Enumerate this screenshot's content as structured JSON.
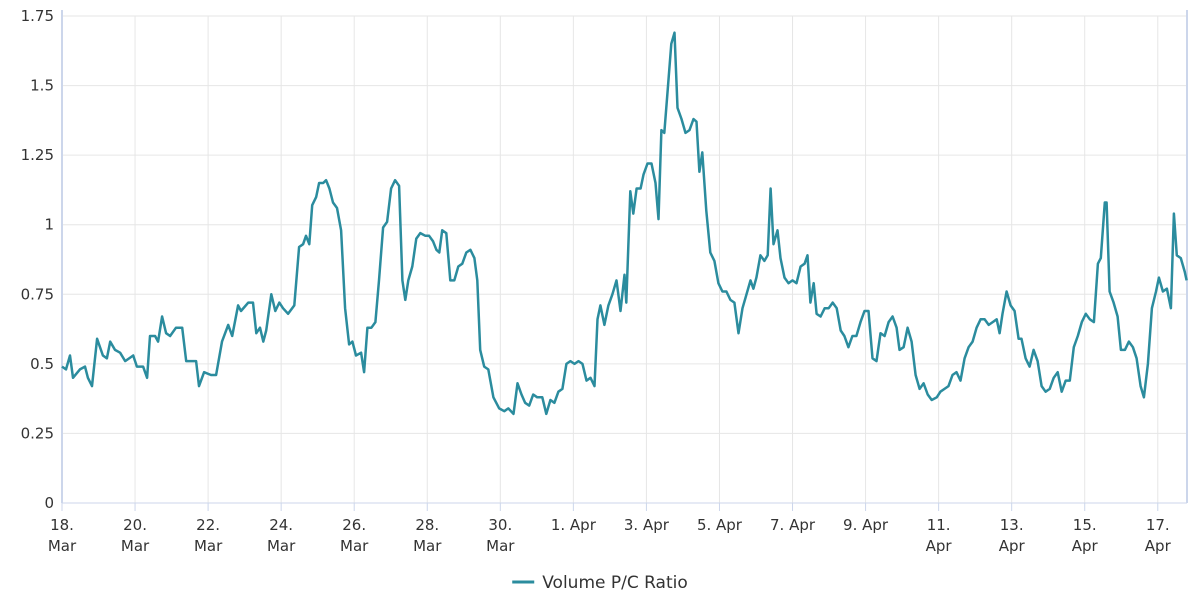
{
  "chart_data": {
    "type": "line",
    "x": [
      0,
      0.11,
      0.22,
      0.3,
      0.49,
      0.63,
      0.71,
      0.82,
      0.96,
      1.12,
      1.23,
      1.32,
      1.45,
      1.59,
      1.73,
      1.95,
      2.05,
      2.22,
      2.33,
      2.41,
      2.55,
      2.63,
      2.74,
      2.85,
      2.96,
      3.12,
      3.29,
      3.4,
      3.56,
      3.67,
      3.75,
      3.89,
      4.08,
      4.22,
      4.38,
      4.55,
      4.66,
      4.82,
      4.9,
      5.1,
      5.23,
      5.32,
      5.42,
      5.51,
      5.59,
      5.73,
      5.84,
      5.95,
      6.05,
      6.19,
      6.36,
      6.49,
      6.6,
      6.68,
      6.77,
      6.85,
      6.96,
      7.04,
      7.15,
      7.23,
      7.32,
      7.42,
      7.53,
      7.64,
      7.75,
      7.86,
      7.95,
      8.05,
      8.19,
      8.27,
      8.36,
      8.47,
      8.58,
      8.68,
      8.79,
      8.9,
      9.01,
      9.12,
      9.23,
      9.32,
      9.4,
      9.48,
      9.59,
      9.7,
      9.81,
      9.95,
      10.05,
      10.16,
      10.25,
      10.33,
      10.41,
      10.52,
      10.63,
      10.74,
      10.85,
      10.96,
      11.07,
      11.18,
      11.29,
      11.37,
      11.45,
      11.56,
      11.67,
      11.81,
      11.97,
      12.11,
      12.22,
      12.36,
      12.47,
      12.58,
      12.68,
      12.79,
      12.9,
      13.01,
      13.15,
      13.26,
      13.37,
      13.48,
      13.59,
      13.7,
      13.81,
      13.92,
      14.03,
      14.14,
      14.25,
      14.36,
      14.47,
      14.58,
      14.66,
      14.74,
      14.85,
      14.96,
      15.07,
      15.18,
      15.29,
      15.4,
      15.45,
      15.56,
      15.64,
      15.73,
      15.84,
      15.92,
      16.03,
      16.14,
      16.25,
      16.33,
      16.41,
      16.49,
      16.58,
      16.68,
      16.77,
      16.85,
      16.96,
      17.07,
      17.18,
      17.29,
      17.37,
      17.45,
      17.53,
      17.64,
      17.75,
      17.86,
      17.97,
      18.08,
      18.19,
      18.3,
      18.41,
      18.52,
      18.63,
      18.74,
      18.85,
      18.93,
      19.01,
      19.12,
      19.23,
      19.32,
      19.4,
      19.48,
      19.59,
      19.67,
      19.78,
      19.89,
      20.0,
      20.11,
      20.22,
      20.33,
      20.41,
      20.49,
      20.58,
      20.66,
      20.77,
      20.88,
      20.99,
      21.1,
      21.21,
      21.32,
      21.42,
      21.53,
      21.64,
      21.75,
      21.86,
      21.97,
      22.08,
      22.19,
      22.3,
      22.41,
      22.52,
      22.63,
      22.74,
      22.85,
      22.93,
      23.04,
      23.15,
      23.26,
      23.37,
      23.48,
      23.59,
      23.7,
      23.81,
      23.95,
      24.05,
      24.16,
      24.27,
      24.38,
      24.49,
      24.6,
      24.71,
      24.82,
      24.93,
      25.04,
      25.15,
      25.26,
      25.37,
      25.48,
      25.59,
      25.67,
      25.75,
      25.86,
      25.97,
      26.08,
      26.19,
      26.27,
      26.38,
      26.49,
      26.6,
      26.71,
      26.82,
      26.93,
      27.04,
      27.15,
      27.26,
      27.37,
      27.48,
      27.59,
      27.7,
      27.81,
      27.92,
      28.03,
      28.14,
      28.25,
      28.36,
      28.44,
      28.55,
      28.6,
      28.68,
      28.79,
      28.9,
      28.99,
      29.1,
      29.21,
      29.32,
      29.42,
      29.53,
      29.62,
      29.73,
      29.84,
      29.95,
      30.03,
      30.14,
      30.25,
      30.36,
      30.44,
      30.52,
      30.63,
      30.74,
      30.79
    ],
    "series": [
      {
        "name": "Volume P/C Ratio",
        "color": "#2b8c9e",
        "values": [
          0.49,
          0.48,
          0.53,
          0.45,
          0.48,
          0.49,
          0.45,
          0.42,
          0.59,
          0.53,
          0.52,
          0.58,
          0.55,
          0.54,
          0.51,
          0.53,
          0.49,
          0.49,
          0.45,
          0.6,
          0.6,
          0.58,
          0.67,
          0.61,
          0.6,
          0.63,
          0.63,
          0.51,
          0.51,
          0.51,
          0.42,
          0.47,
          0.46,
          0.46,
          0.58,
          0.64,
          0.6,
          0.71,
          0.69,
          0.72,
          0.72,
          0.61,
          0.63,
          0.58,
          0.62,
          0.75,
          0.69,
          0.72,
          0.7,
          0.68,
          0.71,
          0.92,
          0.93,
          0.96,
          0.93,
          1.07,
          1.1,
          1.15,
          1.15,
          1.16,
          1.13,
          1.08,
          1.06,
          0.98,
          0.7,
          0.57,
          0.58,
          0.53,
          0.54,
          0.47,
          0.63,
          0.63,
          0.65,
          0.8,
          0.99,
          1.01,
          1.13,
          1.16,
          1.14,
          0.8,
          0.73,
          0.8,
          0.85,
          0.95,
          0.97,
          0.96,
          0.96,
          0.94,
          0.91,
          0.9,
          0.98,
          0.97,
          0.8,
          0.8,
          0.85,
          0.86,
          0.9,
          0.91,
          0.88,
          0.8,
          0.55,
          0.49,
          0.48,
          0.38,
          0.34,
          0.33,
          0.34,
          0.32,
          0.43,
          0.39,
          0.36,
          0.35,
          0.39,
          0.38,
          0.38,
          0.32,
          0.37,
          0.36,
          0.4,
          0.41,
          0.5,
          0.51,
          0.5,
          0.51,
          0.5,
          0.44,
          0.45,
          0.42,
          0.66,
          0.71,
          0.64,
          0.71,
          0.75,
          0.8,
          0.69,
          0.82,
          0.72,
          1.12,
          1.04,
          1.13,
          1.13,
          1.18,
          1.22,
          1.22,
          1.15,
          1.02,
          1.34,
          1.33,
          1.48,
          1.65,
          1.69,
          1.42,
          1.38,
          1.33,
          1.34,
          1.38,
          1.37,
          1.19,
          1.26,
          1.05,
          0.9,
          0.87,
          0.79,
          0.76,
          0.76,
          0.73,
          0.72,
          0.61,
          0.7,
          0.75,
          0.8,
          0.77,
          0.81,
          0.89,
          0.87,
          0.89,
          1.13,
          0.93,
          0.98,
          0.88,
          0.81,
          0.79,
          0.8,
          0.79,
          0.85,
          0.86,
          0.89,
          0.72,
          0.79,
          0.68,
          0.67,
          0.7,
          0.7,
          0.72,
          0.7,
          0.62,
          0.6,
          0.56,
          0.6,
          0.6,
          0.65,
          0.69,
          0.69,
          0.52,
          0.51,
          0.61,
          0.6,
          0.65,
          0.67,
          0.63,
          0.55,
          0.56,
          0.63,
          0.58,
          0.46,
          0.41,
          0.43,
          0.39,
          0.37,
          0.38,
          0.4,
          0.41,
          0.42,
          0.46,
          0.47,
          0.44,
          0.52,
          0.56,
          0.58,
          0.63,
          0.66,
          0.66,
          0.64,
          0.65,
          0.66,
          0.61,
          0.68,
          0.76,
          0.71,
          0.69,
          0.59,
          0.59,
          0.52,
          0.49,
          0.55,
          0.51,
          0.42,
          0.4,
          0.41,
          0.45,
          0.47,
          0.4,
          0.44,
          0.44,
          0.56,
          0.6,
          0.65,
          0.68,
          0.66,
          0.65,
          0.86,
          0.88,
          1.08,
          1.08,
          0.76,
          0.72,
          0.67,
          0.55,
          0.55,
          0.58,
          0.56,
          0.52,
          0.42,
          0.38,
          0.5,
          0.7,
          0.76,
          0.81,
          0.76,
          0.77,
          0.7,
          1.04,
          0.89,
          0.88,
          0.83,
          0.8
        ]
      }
    ],
    "xlim": [
      0,
      30.8
    ],
    "xticks": [
      {
        "value": 0,
        "label": "18. Mar"
      },
      {
        "value": 2,
        "label": "20. Mar"
      },
      {
        "value": 4,
        "label": "22. Mar"
      },
      {
        "value": 6,
        "label": "24. Mar"
      },
      {
        "value": 8,
        "label": "26. Mar"
      },
      {
        "value": 10,
        "label": "28. Mar"
      },
      {
        "value": 12,
        "label": "30. Mar"
      },
      {
        "value": 14,
        "label": "1. Apr"
      },
      {
        "value": 16,
        "label": "3. Apr"
      },
      {
        "value": 18,
        "label": "5. Apr"
      },
      {
        "value": 20,
        "label": "7. Apr"
      },
      {
        "value": 22,
        "label": "9. Apr"
      },
      {
        "value": 24,
        "label": "11. Apr"
      },
      {
        "value": 26,
        "label": "13. Apr"
      },
      {
        "value": 28,
        "label": "15. Apr"
      },
      {
        "value": 30,
        "label": "17. Apr"
      }
    ],
    "ylim": [
      0,
      1.75
    ],
    "yticks": [
      0,
      0.25,
      0.5,
      0.75,
      1,
      1.25,
      1.5,
      1.75
    ],
    "grid": true,
    "legend": "bottom"
  }
}
